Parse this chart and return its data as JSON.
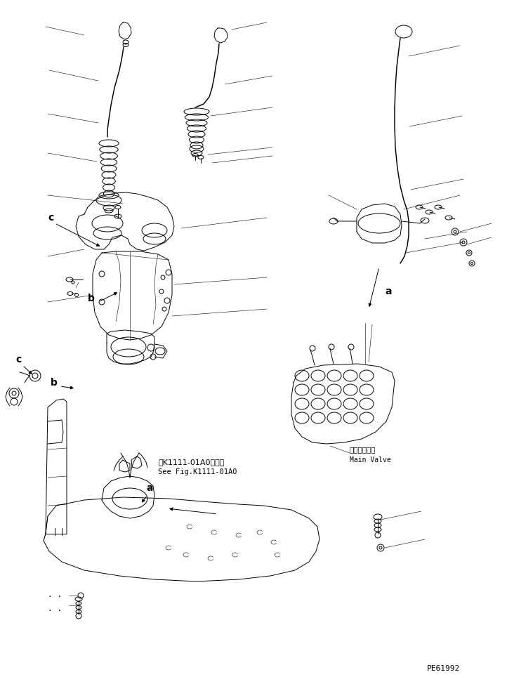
{
  "figure_width": 7.22,
  "figure_height": 9.64,
  "dpi": 100,
  "bg_color": "#ffffff",
  "line_color": "#000000",
  "text_color": "#000000",
  "part_number": "PE61992",
  "ref_text_jp": "第K1111-01A0図参照",
  "ref_text_en": "See Fig.K1111-01A0",
  "main_valve_jp": "メインバルブ",
  "main_valve_en": "Main Valve",
  "line_width": 0.7,
  "thin_line": 0.4
}
